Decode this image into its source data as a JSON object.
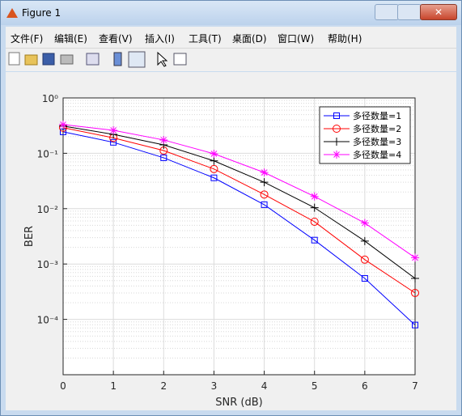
{
  "window": {
    "title": "Figure 1"
  },
  "menu": [
    "文件(F)",
    "编辑(E)",
    "查看(V)",
    "插入(I)",
    "工具(T)",
    "桌面(D)",
    "窗口(W)",
    "帮助(H)"
  ],
  "chart_data": {
    "type": "line",
    "xlabel": "SNR (dB)",
    "ylabel": "BER",
    "x": [
      0,
      1,
      2,
      3,
      4,
      5,
      6,
      7
    ],
    "xlim": [
      0,
      7
    ],
    "xticks": [
      0,
      1,
      2,
      3,
      4,
      5,
      6,
      7
    ],
    "ylim": [
      1e-05,
      1
    ],
    "log_y": true,
    "yticks": [
      {
        "value": 1,
        "label": "10⁰"
      },
      {
        "value": 0.1,
        "label": "10⁻¹"
      },
      {
        "value": 0.01,
        "label": "10⁻²"
      },
      {
        "value": 0.001,
        "label": "10⁻³"
      },
      {
        "value": 0.0001,
        "label": "10⁻⁴"
      }
    ],
    "grid": true,
    "minor_grid": true,
    "legend_position": "northeast",
    "series": [
      {
        "name": "多径数量=1",
        "color": "#0000ff",
        "marker": "square",
        "values": [
          0.244,
          0.158,
          0.083,
          0.036,
          0.0118,
          0.0027,
          0.00055,
          7.9e-05
        ]
      },
      {
        "name": "多径数量=2",
        "color": "#ff0000",
        "marker": "circle",
        "values": [
          0.29,
          0.19,
          0.112,
          0.052,
          0.018,
          0.0058,
          0.0012,
          0.0003
        ]
      },
      {
        "name": "多径数量=3",
        "color": "#000000",
        "marker": "plus",
        "values": [
          0.31,
          0.22,
          0.142,
          0.073,
          0.03,
          0.0104,
          0.0026,
          0.00055
        ]
      },
      {
        "name": "多径数量=4",
        "color": "#ff00ff",
        "marker": "star",
        "values": [
          0.33,
          0.26,
          0.174,
          0.098,
          0.045,
          0.0166,
          0.0055,
          0.0013
        ]
      }
    ]
  }
}
